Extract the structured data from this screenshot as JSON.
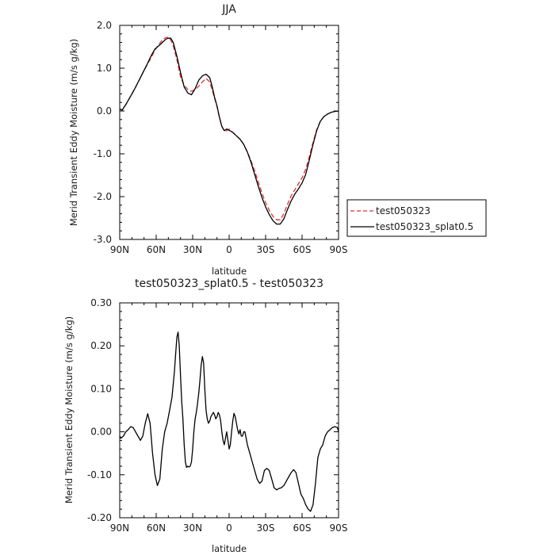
{
  "chart_data": [
    {
      "type": "line",
      "title": "JJA",
      "xlabel": "latitude",
      "ylabel": "Merid Transient Eddy Moisture (m/s g/kg)",
      "xlim": [
        90,
        -90
      ],
      "ylim": [
        -3.0,
        2.0
      ],
      "x_ticks": [
        90,
        60,
        30,
        0,
        -30,
        -60,
        -90
      ],
      "x_tick_labels": [
        "90N",
        "60N",
        "30N",
        "0",
        "30S",
        "60S",
        "90S"
      ],
      "y_ticks": [
        -3,
        -2,
        -1,
        0,
        1,
        2
      ],
      "y_tick_labels": [
        "-3.0",
        "-2.0",
        "-1.0",
        "0.0",
        "1.0",
        "2.0"
      ],
      "legend_position": "right",
      "series": [
        {
          "name": "test050323",
          "color": "#e03030",
          "style": "dashed",
          "x": [
            90,
            88,
            85,
            82,
            78,
            74,
            70,
            67,
            64,
            61,
            58,
            55,
            52,
            50,
            48,
            46,
            43,
            40,
            37,
            34,
            31,
            28,
            25,
            22,
            19,
            16,
            14,
            12,
            10,
            8,
            6,
            4,
            2,
            0,
            -3,
            -6,
            -9,
            -12,
            -15,
            -18,
            -21,
            -24,
            -27,
            -30,
            -33,
            -36,
            -39,
            -42,
            -45,
            -48,
            -51,
            -54,
            -57,
            -60,
            -63,
            -66,
            -69,
            -72,
            -75,
            -78,
            -81,
            -84,
            -87,
            -90
          ],
          "values": [
            0.05,
            0.02,
            0.15,
            0.3,
            0.5,
            0.72,
            0.95,
            1.1,
            1.26,
            1.42,
            1.55,
            1.66,
            1.72,
            1.72,
            1.66,
            1.52,
            1.2,
            0.8,
            0.6,
            0.5,
            0.46,
            0.5,
            0.58,
            0.68,
            0.76,
            0.68,
            0.5,
            0.3,
            0.1,
            -0.15,
            -0.36,
            -0.46,
            -0.46,
            -0.42,
            -0.5,
            -0.58,
            -0.66,
            -0.78,
            -0.96,
            -1.16,
            -1.4,
            -1.66,
            -1.92,
            -2.14,
            -2.32,
            -2.46,
            -2.54,
            -2.54,
            -2.4,
            -2.18,
            -1.98,
            -1.84,
            -1.7,
            -1.56,
            -1.36,
            -1.06,
            -0.74,
            -0.44,
            -0.24,
            -0.13,
            -0.07,
            -0.03,
            -0.01,
            0.0
          ]
        },
        {
          "name": "test050323_splat0.5",
          "color": "#000000",
          "style": "solid",
          "x": [
            90,
            88,
            85,
            82,
            78,
            74,
            70,
            67,
            64,
            61,
            58,
            55,
            52,
            50,
            48,
            46,
            43,
            40,
            37,
            34,
            31,
            28,
            25,
            22,
            19,
            16,
            14,
            12,
            10,
            8,
            6,
            4,
            2,
            0,
            -3,
            -6,
            -9,
            -12,
            -15,
            -18,
            -21,
            -24,
            -27,
            -30,
            -33,
            -36,
            -39,
            -42,
            -45,
            -48,
            -51,
            -54,
            -57,
            -60,
            -63,
            -66,
            -69,
            -72,
            -75,
            -78,
            -81,
            -84,
            -87,
            -90
          ],
          "values": [
            0.05,
            0.02,
            0.15,
            0.3,
            0.5,
            0.72,
            0.95,
            1.12,
            1.3,
            1.45,
            1.52,
            1.6,
            1.68,
            1.7,
            1.7,
            1.6,
            1.28,
            0.9,
            0.56,
            0.42,
            0.38,
            0.52,
            0.72,
            0.82,
            0.86,
            0.78,
            0.58,
            0.32,
            0.12,
            -0.14,
            -0.36,
            -0.46,
            -0.42,
            -0.45,
            -0.5,
            -0.58,
            -0.66,
            -0.78,
            -0.96,
            -1.2,
            -1.48,
            -1.76,
            -2.02,
            -2.24,
            -2.42,
            -2.56,
            -2.64,
            -2.64,
            -2.52,
            -2.3,
            -2.1,
            -1.94,
            -1.82,
            -1.68,
            -1.48,
            -1.14,
            -0.78,
            -0.46,
            -0.24,
            -0.13,
            -0.07,
            -0.03,
            -0.01,
            0.0
          ]
        }
      ]
    },
    {
      "type": "line",
      "title": "test050323_splat0.5 - test050323",
      "xlabel": "latitude",
      "ylabel": "Merid Transient Eddy Moisture (m/s g/kg)",
      "xlim": [
        90,
        -90
      ],
      "ylim": [
        -0.2,
        0.3
      ],
      "x_ticks": [
        90,
        60,
        30,
        0,
        -30,
        -60,
        -90
      ],
      "x_tick_labels": [
        "90N",
        "60N",
        "30N",
        "0",
        "30S",
        "60S",
        "90S"
      ],
      "y_ticks": [
        -0.2,
        -0.1,
        0,
        0.1,
        0.2,
        0.3
      ],
      "y_tick_labels": [
        "-0.20",
        "-0.10",
        "0.00",
        "0.10",
        "0.20",
        "0.30"
      ],
      "series": [
        {
          "name": "",
          "color": "#000000",
          "style": "solid",
          "x": [
            90,
            89,
            87,
            85,
            83,
            81,
            79,
            77,
            75,
            73,
            71,
            69,
            67,
            65,
            63,
            61,
            59,
            57,
            55,
            53,
            51,
            49,
            47,
            45,
            44,
            43,
            42,
            41,
            40,
            39,
            38,
            37,
            36,
            35,
            34,
            33,
            32,
            31,
            30,
            29,
            28,
            27,
            26,
            25,
            24,
            23,
            22,
            21,
            20,
            19,
            18,
            17,
            16,
            15,
            14,
            13,
            12,
            11,
            10,
            9,
            8,
            7,
            6,
            5,
            4,
            3,
            2,
            1,
            0,
            -1,
            -2,
            -3,
            -4,
            -5,
            -6,
            -7,
            -8,
            -9,
            -10,
            -11,
            -12,
            -13,
            -14,
            -15,
            -17,
            -19,
            -21,
            -23,
            -25,
            -27,
            -29,
            -31,
            -33,
            -35,
            -37,
            -39,
            -41,
            -43,
            -45,
            -47,
            -49,
            -51,
            -53,
            -55,
            -57,
            -59,
            -61,
            -63,
            -65,
            -67,
            -69,
            -71,
            -73,
            -75,
            -77,
            -79,
            -81,
            -83,
            -85,
            -87,
            -89,
            -90
          ],
          "values": [
            -0.01,
            -0.015,
            -0.01,
            0.0,
            0.005,
            0.012,
            0.01,
            0.0,
            -0.01,
            -0.02,
            -0.01,
            0.02,
            0.042,
            0.02,
            -0.05,
            -0.1,
            -0.125,
            -0.11,
            -0.04,
            0.0,
            0.02,
            0.05,
            0.08,
            0.14,
            0.18,
            0.22,
            0.232,
            0.2,
            0.13,
            0.07,
            0.03,
            -0.03,
            -0.07,
            -0.083,
            -0.08,
            -0.082,
            -0.08,
            -0.07,
            -0.04,
            0.0,
            0.03,
            0.045,
            0.065,
            0.09,
            0.12,
            0.155,
            0.175,
            0.16,
            0.1,
            0.05,
            0.03,
            0.02,
            0.025,
            0.035,
            0.04,
            0.045,
            0.04,
            0.03,
            0.035,
            0.045,
            0.04,
            0.025,
            0.0,
            -0.02,
            -0.03,
            -0.015,
            0.0,
            -0.02,
            -0.04,
            -0.03,
            0.0,
            0.025,
            0.043,
            0.035,
            0.02,
            0.005,
            -0.005,
            0.005,
            -0.01,
            -0.01,
            0.0,
            0.0,
            -0.015,
            -0.03,
            -0.05,
            -0.07,
            -0.09,
            -0.11,
            -0.12,
            -0.115,
            -0.09,
            -0.085,
            -0.09,
            -0.11,
            -0.13,
            -0.135,
            -0.132,
            -0.13,
            -0.125,
            -0.115,
            -0.105,
            -0.095,
            -0.088,
            -0.095,
            -0.12,
            -0.145,
            -0.155,
            -0.17,
            -0.18,
            -0.185,
            -0.17,
            -0.12,
            -0.06,
            -0.04,
            -0.03,
            -0.01,
            0.0,
            0.005,
            0.01,
            0.012,
            0.01,
            0.0
          ]
        }
      ]
    }
  ]
}
